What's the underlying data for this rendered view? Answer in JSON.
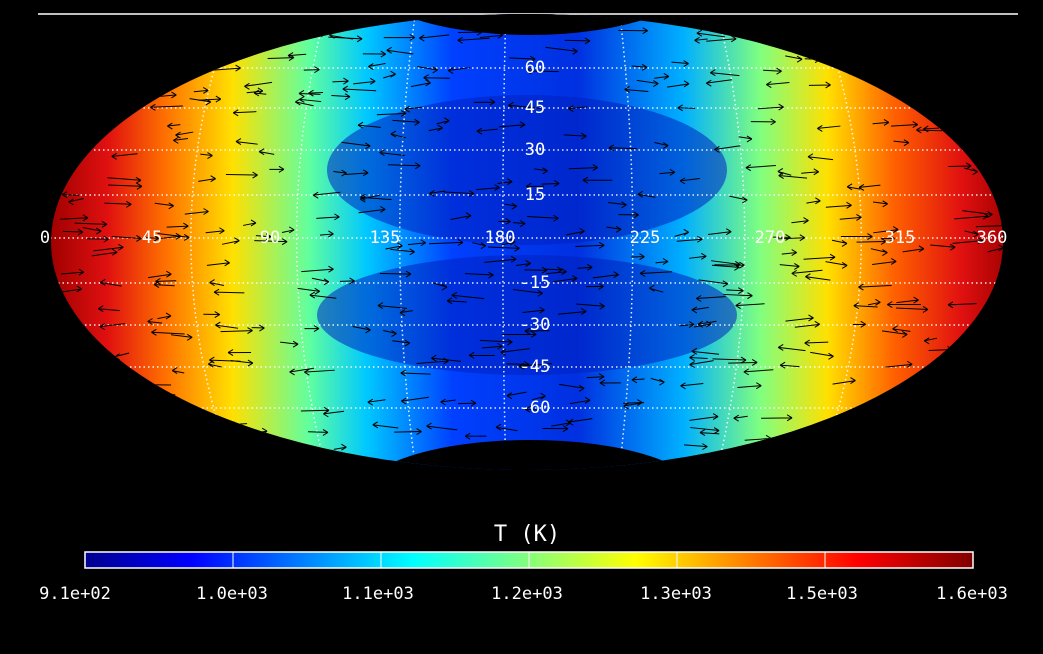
{
  "map": {
    "lon_labels": [
      "0",
      "45",
      "90",
      "135",
      "180",
      "225",
      "270",
      "315",
      "360"
    ],
    "lat_labels": [
      "60",
      "45",
      "30",
      "15",
      "-15",
      "-30",
      "-45",
      "-60"
    ]
  },
  "colorbar": {
    "title": "T (K)",
    "ticks": [
      "9.1e+02",
      "1.0e+03",
      "1.1e+03",
      "1.2e+03",
      "1.3e+03",
      "1.5e+03",
      "1.6e+03"
    ]
  }
}
